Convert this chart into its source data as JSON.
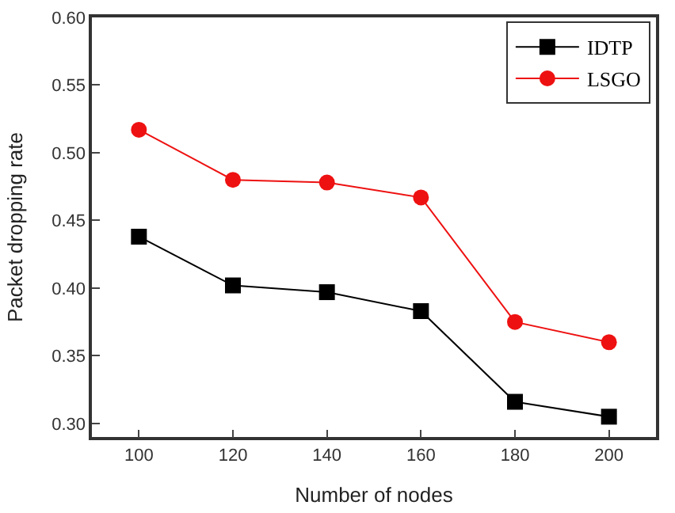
{
  "chart_data": {
    "type": "line",
    "xlabel": "Number of nodes",
    "ylabel": "Packet dropping rate",
    "x": [
      100,
      120,
      140,
      160,
      180,
      200
    ],
    "series": [
      {
        "name": "IDTP",
        "color": "#000000",
        "marker": "square",
        "values": [
          0.438,
          0.402,
          0.397,
          0.383,
          0.316,
          0.305
        ]
      },
      {
        "name": "LSGO",
        "color": "#ee1111",
        "marker": "circle",
        "values": [
          0.517,
          0.48,
          0.478,
          0.467,
          0.375,
          0.36
        ]
      }
    ],
    "xlim": [
      90,
      210
    ],
    "xticks": [
      100,
      120,
      140,
      160,
      180,
      200
    ],
    "ylim": [
      0.29,
      0.6
    ],
    "yticks": [
      {
        "value": 0.3,
        "label": "0.30"
      },
      {
        "value": 0.35,
        "label": "0.35"
      },
      {
        "value": 0.4,
        "label": "0.40"
      },
      {
        "value": 0.45,
        "label": "0.45"
      },
      {
        "value": 0.5,
        "label": "0.50"
      },
      {
        "value": 0.55,
        "label": "0.55"
      },
      {
        "value": 0.6,
        "label": "0.60"
      }
    ],
    "legend": "top right",
    "line_style": "solid"
  }
}
